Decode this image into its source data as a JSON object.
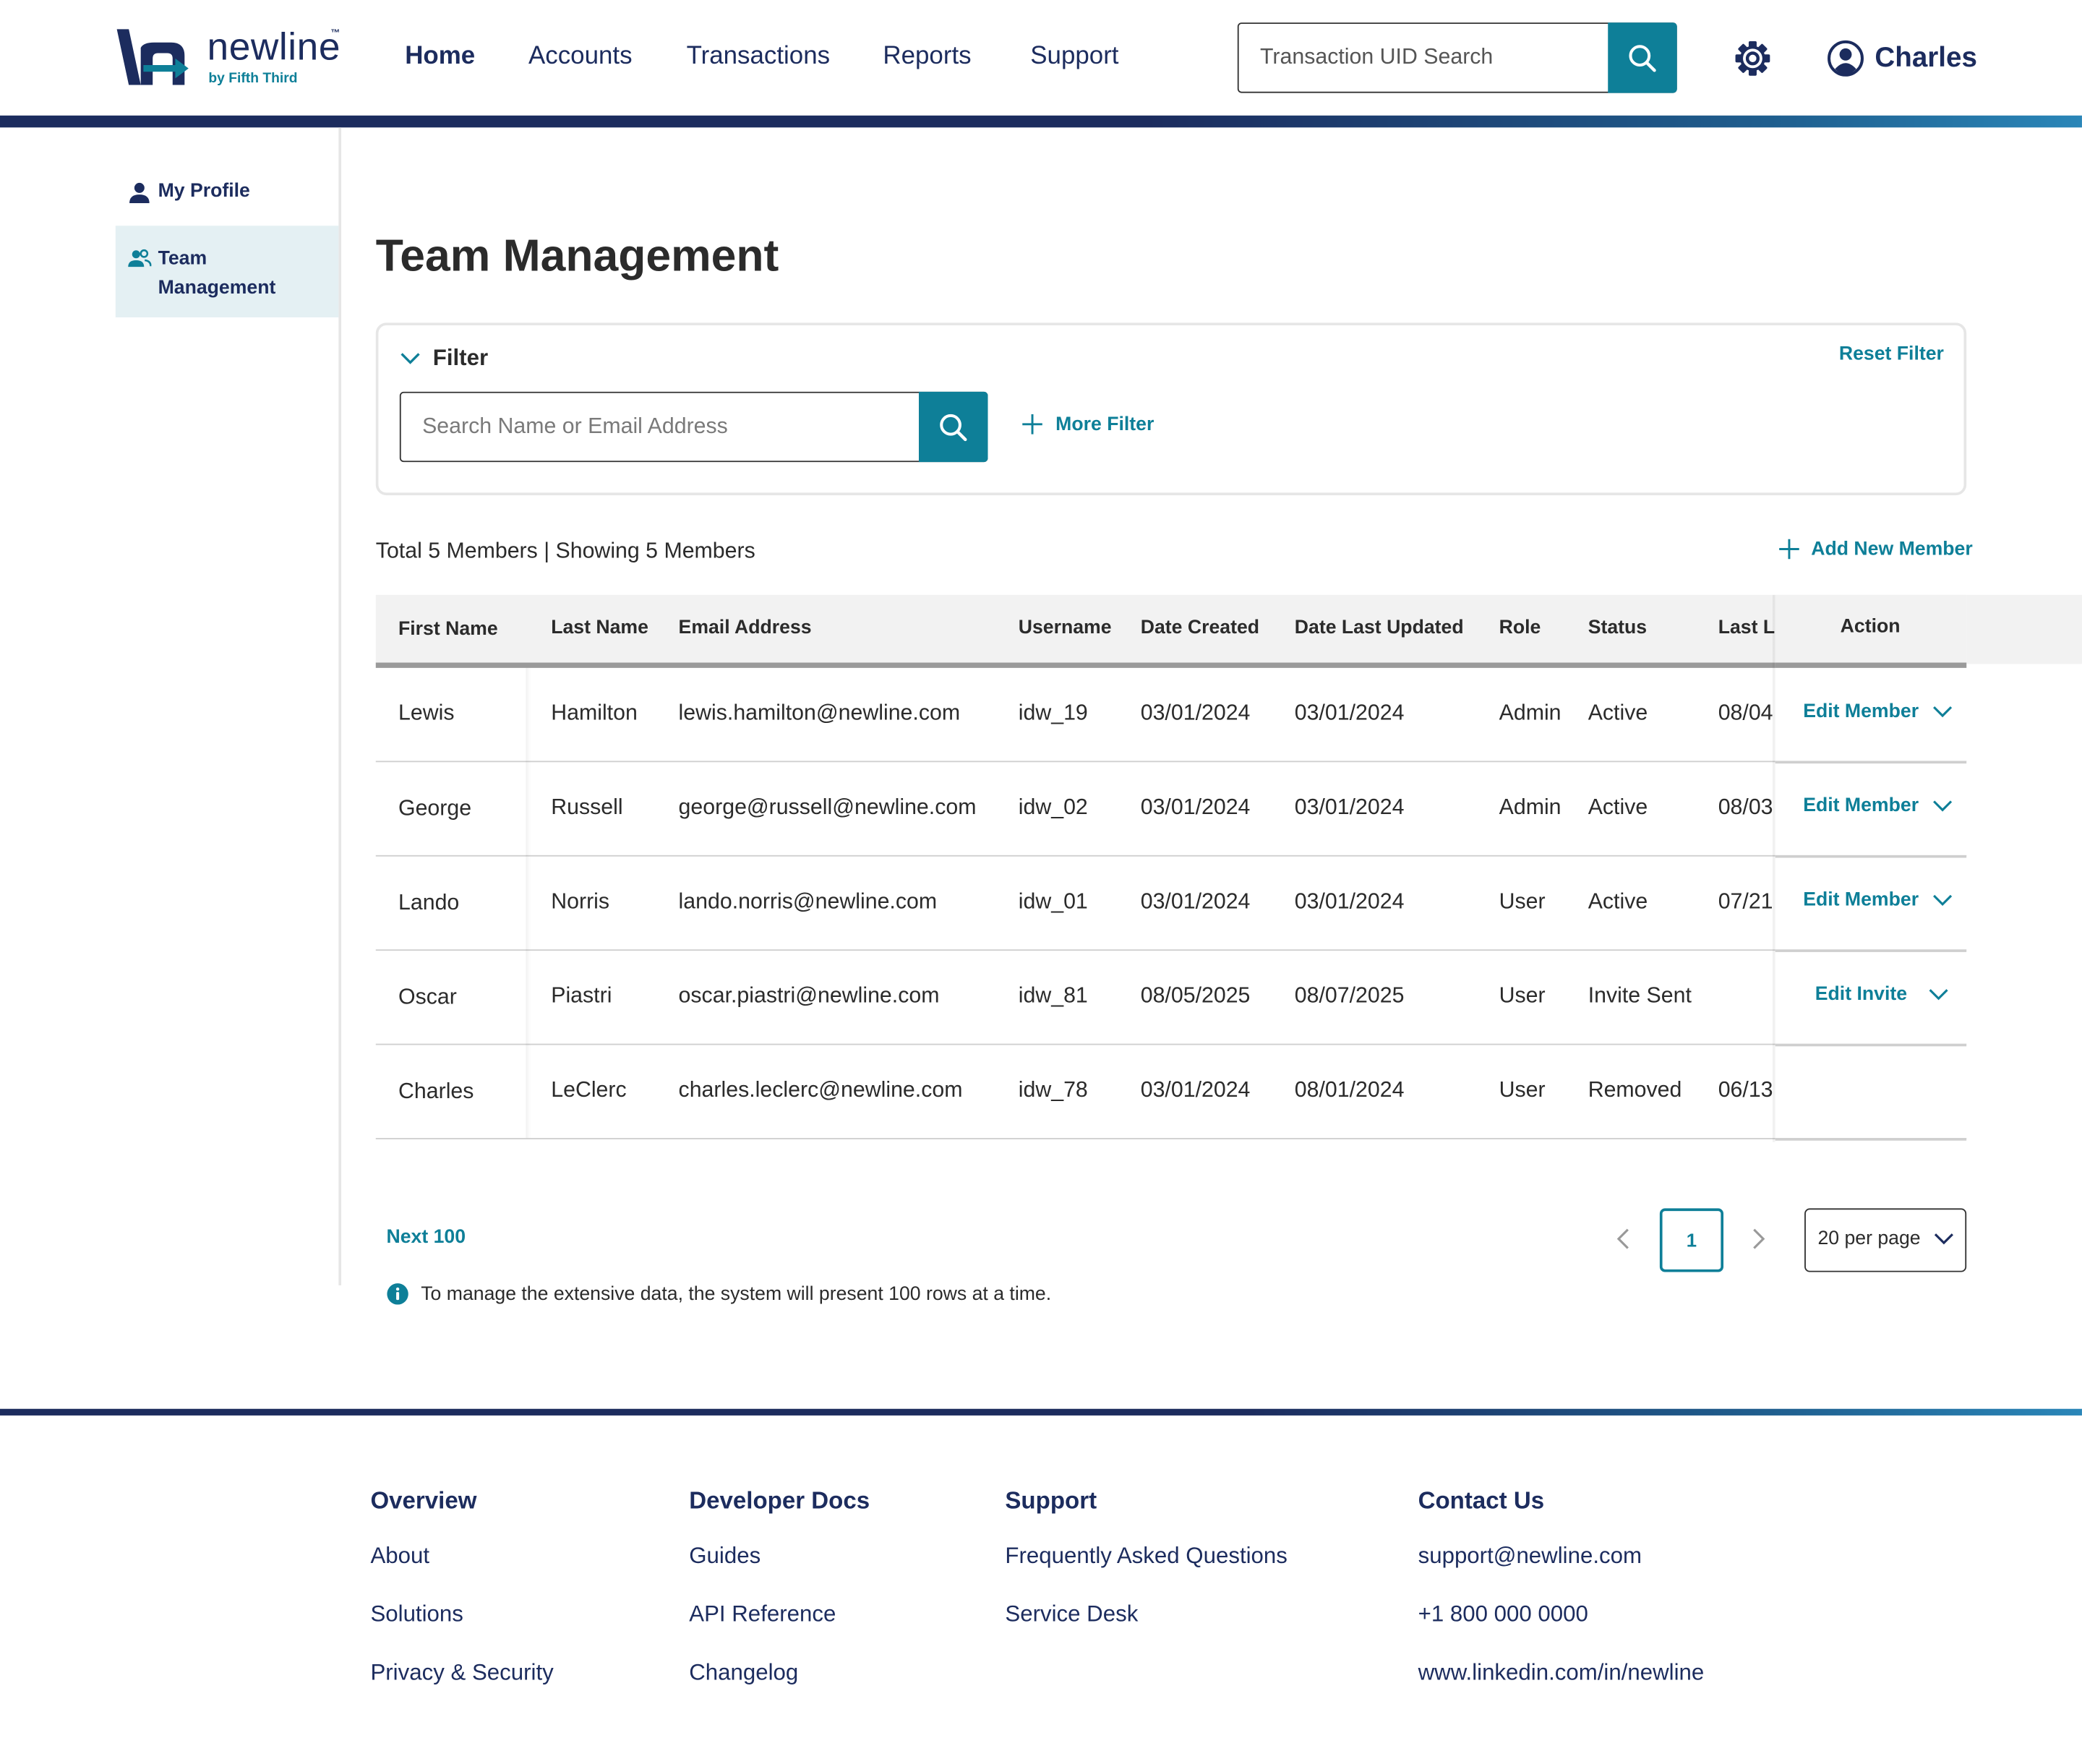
{
  "brand": {
    "name": "newline",
    "trademark": "™",
    "tagline": "by Fifth Third"
  },
  "nav": {
    "items": [
      "Home",
      "Accounts",
      "Transactions",
      "Reports",
      "Support"
    ],
    "active": "Home"
  },
  "header": {
    "uid_search_placeholder": "Transaction UID Search",
    "user_name": "Charles",
    "icons": [
      "search-icon",
      "gear-icon",
      "user-circle-icon"
    ]
  },
  "sidebar": {
    "items": [
      {
        "label": "My Profile",
        "icon": "person-icon"
      },
      {
        "label": "Team Management",
        "icon": "people-icon",
        "active": true
      }
    ]
  },
  "main": {
    "title": "Team Management",
    "filter": {
      "label": "Filter",
      "reset_label": "Reset Filter",
      "search_placeholder": "Search Name or Email Address",
      "more_filter_label": "More Filter"
    },
    "summary": "Total 5 Members | Showing 5 Members",
    "add_member_label": "Add New Member",
    "table": {
      "columns": [
        "First Name",
        "Last Name",
        "Email Address",
        "Username",
        "Date Created",
        "Date Last Updated",
        "Role",
        "Status",
        "Last Lo",
        "Action"
      ],
      "rows": [
        {
          "first": "Lewis",
          "last": "Hamilton",
          "email": "lewis.hamilton@newline.com",
          "username": "idw_19",
          "created": "03/01/2024",
          "updated": "03/01/2024",
          "role": "Admin",
          "status": "Active",
          "last_login": "08/04",
          "action": "Edit Member"
        },
        {
          "first": "George",
          "last": "Russell",
          "email": "george@russell@newline.com",
          "username": "idw_02",
          "created": "03/01/2024",
          "updated": "03/01/2024",
          "role": "Admin",
          "status": "Active",
          "last_login": "08/03",
          "action": "Edit Member"
        },
        {
          "first": "Lando",
          "last": "Norris",
          "email": "lando.norris@newline.com",
          "username": "idw_01",
          "created": "03/01/2024",
          "updated": "03/01/2024",
          "role": "User",
          "status": "Active",
          "last_login": "07/21",
          "action": "Edit Member"
        },
        {
          "first": "Oscar",
          "last": "Piastri",
          "email": "oscar.piastri@newline.com",
          "username": "idw_81",
          "created": "08/05/2025",
          "updated": "08/07/2025",
          "role": "User",
          "status": "Invite Sent",
          "last_login": "",
          "action": "Edit Invite"
        },
        {
          "first": "Charles",
          "last": "LeClerc",
          "email": "charles.leclerc@newline.com",
          "username": "idw_78",
          "created": "03/01/2024",
          "updated": "08/01/2024",
          "role": "User",
          "status": "Removed",
          "last_login": "06/13",
          "action": ""
        }
      ]
    },
    "pagination": {
      "next_label": "Next 100",
      "current_page": "1",
      "per_page": "20 per page"
    },
    "info_text": "To manage the extensive data, the system will present 100 rows at a time."
  },
  "footer": {
    "columns": [
      {
        "heading": "Overview",
        "links": [
          "About",
          "Solutions",
          "Privacy & Security"
        ]
      },
      {
        "heading": "Developer Docs",
        "links": [
          "Guides",
          "API Reference",
          "Changelog"
        ]
      },
      {
        "heading": "Support",
        "links": [
          "Frequently Asked Questions",
          "Service Desk"
        ]
      },
      {
        "heading": "Contact Us",
        "links": [
          "support@newline.com",
          "+1 800 000 0000",
          "www.linkedin.com/in/newline"
        ]
      }
    ]
  },
  "colors": {
    "navy": "#1c2c5e",
    "teal": "#0e7f98",
    "sidebar_active": "#e4f0f3",
    "table_header": "#f2f2f2"
  }
}
